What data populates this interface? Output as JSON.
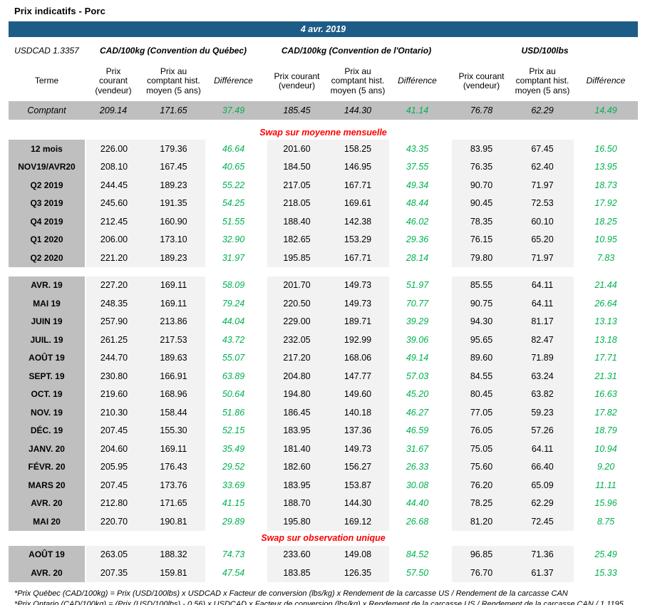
{
  "title": "Prix indicatifs - Porc",
  "banner": {
    "date": "4 avr. 2019"
  },
  "colors": {
    "accent_blue": "#1D5C87",
    "row_gray": "#BFBFBF",
    "cell_gray": "#F2F2F2",
    "diff_green": "#00B050",
    "section_red": "#FF0000"
  },
  "header": {
    "usdcad": "USDCAD 1.3357",
    "groups": {
      "quebec": "CAD/100kg (Convention du Québec)",
      "ontario": "CAD/100kg (Convention de l'Ontario)",
      "usd": "USD/100lbs"
    },
    "columns": {
      "terme": "Terme",
      "prix_courant": "Prix courant (vendeur)",
      "prix_comptant": "Prix au comptant hist. moyen (5 ans)",
      "difference": "Différence"
    }
  },
  "table": {
    "comptant": {
      "terme": "Comptant",
      "values": [
        "209.14",
        "171.65",
        "37.49",
        "185.45",
        "144.30",
        "41.14",
        "76.78",
        "62.29",
        "14.49"
      ]
    },
    "swap_mensuelle": {
      "title": "Swap sur moyenne mensuelle",
      "rows_terms": [
        {
          "terme": "12 mois",
          "values": [
            "226.00",
            "179.36",
            "46.64",
            "201.60",
            "158.25",
            "43.35",
            "83.95",
            "67.45",
            "16.50"
          ]
        },
        {
          "terme": "NOV19/AVR20",
          "values": [
            "208.10",
            "167.45",
            "40.65",
            "184.50",
            "146.95",
            "37.55",
            "76.35",
            "62.40",
            "13.95"
          ]
        },
        {
          "terme": "Q2 2019",
          "values": [
            "244.45",
            "189.23",
            "55.22",
            "217.05",
            "167.71",
            "49.34",
            "90.70",
            "71.97",
            "18.73"
          ]
        },
        {
          "terme": "Q3 2019",
          "values": [
            "245.60",
            "191.35",
            "54.25",
            "218.05",
            "169.61",
            "48.44",
            "90.45",
            "72.53",
            "17.92"
          ]
        },
        {
          "terme": "Q4 2019",
          "values": [
            "212.45",
            "160.90",
            "51.55",
            "188.40",
            "142.38",
            "46.02",
            "78.35",
            "60.10",
            "18.25"
          ]
        },
        {
          "terme": "Q1 2020",
          "values": [
            "206.00",
            "173.10",
            "32.90",
            "182.65",
            "153.29",
            "29.36",
            "76.15",
            "65.20",
            "10.95"
          ]
        },
        {
          "terme": "Q2 2020",
          "values": [
            "221.20",
            "189.23",
            "31.97",
            "195.85",
            "167.71",
            "28.14",
            "79.80",
            "71.97",
            "7.83"
          ]
        }
      ],
      "rows_months": [
        {
          "terme": "AVR. 19",
          "values": [
            "227.20",
            "169.11",
            "58.09",
            "201.70",
            "149.73",
            "51.97",
            "85.55",
            "64.11",
            "21.44"
          ]
        },
        {
          "terme": "MAI 19",
          "values": [
            "248.35",
            "169.11",
            "79.24",
            "220.50",
            "149.73",
            "70.77",
            "90.75",
            "64.11",
            "26.64"
          ]
        },
        {
          "terme": "JUIN 19",
          "values": [
            "257.90",
            "213.86",
            "44.04",
            "229.00",
            "189.71",
            "39.29",
            "94.30",
            "81.17",
            "13.13"
          ]
        },
        {
          "terme": "JUIL. 19",
          "values": [
            "261.25",
            "217.53",
            "43.72",
            "232.05",
            "192.99",
            "39.06",
            "95.65",
            "82.47",
            "13.18"
          ]
        },
        {
          "terme": "AOÛT 19",
          "values": [
            "244.70",
            "189.63",
            "55.07",
            "217.20",
            "168.06",
            "49.14",
            "89.60",
            "71.89",
            "17.71"
          ]
        },
        {
          "terme": "SEPT. 19",
          "values": [
            "230.80",
            "166.91",
            "63.89",
            "204.80",
            "147.77",
            "57.03",
            "84.55",
            "63.24",
            "21.31"
          ]
        },
        {
          "terme": "OCT. 19",
          "values": [
            "219.60",
            "168.96",
            "50.64",
            "194.80",
            "149.60",
            "45.20",
            "80.45",
            "63.82",
            "16.63"
          ]
        },
        {
          "terme": "NOV. 19",
          "values": [
            "210.30",
            "158.44",
            "51.86",
            "186.45",
            "140.18",
            "46.27",
            "77.05",
            "59.23",
            "17.82"
          ]
        },
        {
          "terme": "DÉC. 19",
          "values": [
            "207.45",
            "155.30",
            "52.15",
            "183.95",
            "137.36",
            "46.59",
            "76.05",
            "57.26",
            "18.79"
          ]
        },
        {
          "terme": "JANV. 20",
          "values": [
            "204.60",
            "169.11",
            "35.49",
            "181.40",
            "149.73",
            "31.67",
            "75.05",
            "64.11",
            "10.94"
          ]
        },
        {
          "terme": "FÉVR. 20",
          "values": [
            "205.95",
            "176.43",
            "29.52",
            "182.60",
            "156.27",
            "26.33",
            "75.60",
            "66.40",
            "9.20"
          ]
        },
        {
          "terme": "MARS 20",
          "values": [
            "207.45",
            "173.76",
            "33.69",
            "183.95",
            "153.87",
            "30.08",
            "76.20",
            "65.09",
            "11.11"
          ]
        },
        {
          "terme": "AVR. 20",
          "values": [
            "212.80",
            "171.65",
            "41.15",
            "188.70",
            "144.30",
            "44.40",
            "78.25",
            "62.29",
            "15.96"
          ]
        },
        {
          "terme": "MAI 20",
          "values": [
            "220.70",
            "190.81",
            "29.89",
            "195.80",
            "169.12",
            "26.68",
            "81.20",
            "72.45",
            "8.75"
          ]
        }
      ]
    },
    "swap_unique": {
      "title": "Swap sur observation unique",
      "rows": [
        {
          "terme": "AOÛT 19",
          "values": [
            "263.05",
            "188.32",
            "74.73",
            "233.60",
            "149.08",
            "84.52",
            "96.85",
            "71.36",
            "25.49"
          ]
        },
        {
          "terme": "AVR. 20",
          "values": [
            "207.35",
            "159.81",
            "47.54",
            "183.85",
            "126.35",
            "57.50",
            "76.70",
            "61.37",
            "15.33"
          ]
        }
      ]
    }
  },
  "footnotes": [
    "*Prix Québec (CAD/100kg) = Prix (USD/100lbs) x USDCAD x Facteur de conversion (lbs/kg) x Rendement de la carcasse US / Rendement de la carcasse CAN",
    "*Prix Ontario (CAD/100kg) = (Prix (USD/100lbs) - 0.56) x USDCAD x Facteur de conversion (lbs/kg) x Rendement de la carcasse US / Rendement de la carcasse CAN / 1.1195"
  ]
}
